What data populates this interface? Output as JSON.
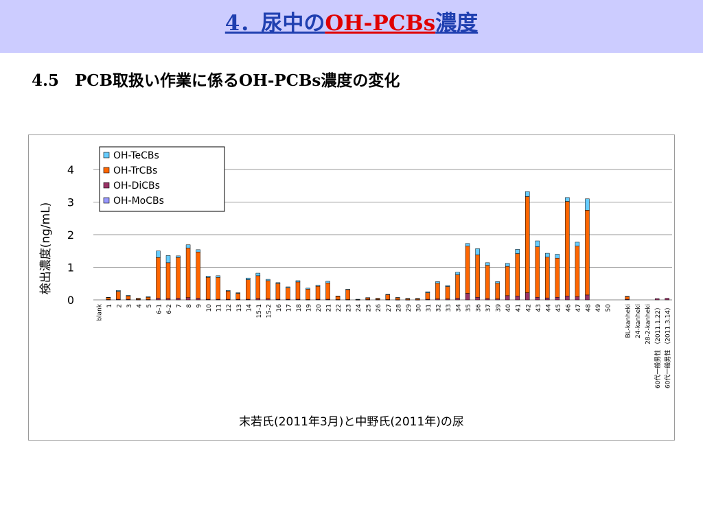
{
  "title": {
    "prefix": "4．尿中の",
    "highlight": "OH-PCBs",
    "suffix": "濃度",
    "color_main": "#1f3fb0",
    "color_highlight": "#e00000"
  },
  "subtitle": "4.5　PCB取扱い作業に係るOH-PCBs濃度の変化",
  "chart_data": {
    "type": "bar",
    "stacked": true,
    "title": "",
    "xlabel": "末若氏(2011年3月)と中野氏(2011年)の尿",
    "ylabel": "検出濃度(ng/mL)",
    "ylim": [
      0,
      4
    ],
    "yticks": [
      "0",
      "1",
      "2",
      "3",
      "4"
    ],
    "grid": true,
    "legend_position": "top-left",
    "categories": [
      "blank",
      "1",
      "2",
      "3",
      "4",
      "5",
      "6-1",
      "6-2",
      "7",
      "8",
      "9",
      "10",
      "11",
      "12",
      "13",
      "14",
      "15-1",
      "15-2",
      "16",
      "17",
      "18",
      "19",
      "20",
      "21",
      "22",
      "23",
      "24",
      "25",
      "26",
      "27",
      "28",
      "29",
      "30",
      "31",
      "32",
      "33",
      "34",
      "35",
      "36",
      "37",
      "39",
      "40",
      "41",
      "42",
      "43",
      "44",
      "45",
      "46",
      "47",
      "48",
      "49",
      "50",
      "",
      "BL-kanheki",
      "24-kanheki",
      "28-2-kanheki",
      "60代一般男性 （2011.1.22）",
      "60代一般男性 （2011.3.14）"
    ],
    "series": [
      {
        "name": "OH-MoCBs",
        "color": "#9999ff",
        "values": [
          0,
          0,
          0,
          0,
          0,
          0,
          0,
          0,
          0,
          0,
          0,
          0,
          0,
          0,
          0,
          0,
          0,
          0,
          0,
          0,
          0,
          0,
          0,
          0,
          0,
          0,
          0,
          0,
          0,
          0,
          0,
          0,
          0,
          0,
          0,
          0,
          0,
          0,
          0,
          0,
          0,
          0,
          0,
          0,
          0,
          0,
          0,
          0,
          0,
          0,
          0,
          0,
          0,
          0,
          0,
          0,
          0,
          0
        ]
      },
      {
        "name": "OH-DiCBs",
        "color": "#993366",
        "values": [
          0,
          0.01,
          0.02,
          0.02,
          0.01,
          0.01,
          0.05,
          0.04,
          0.05,
          0.07,
          0.05,
          0.02,
          0.02,
          0.02,
          0.02,
          0.02,
          0.04,
          0.03,
          0.02,
          0.02,
          0.02,
          0.01,
          0.02,
          0.02,
          0.01,
          0.01,
          0.005,
          0.01,
          0.01,
          0.01,
          0.005,
          0.005,
          0.005,
          0.02,
          0.03,
          0.03,
          0.05,
          0.2,
          0.08,
          0.04,
          0.03,
          0.13,
          0.12,
          0.22,
          0.08,
          0.06,
          0.08,
          0.12,
          0.1,
          0.15,
          0,
          0,
          0,
          0.02,
          0,
          0,
          0.04,
          0.05
        ]
      },
      {
        "name": "OH-TrCBs",
        "color": "#ff6600",
        "values": [
          0,
          0.06,
          0.24,
          0.1,
          0.03,
          0.07,
          1.25,
          1.1,
          1.25,
          1.52,
          1.42,
          0.67,
          0.67,
          0.25,
          0.18,
          0.6,
          0.7,
          0.56,
          0.48,
          0.35,
          0.53,
          0.32,
          0.4,
          0.5,
          0.1,
          0.3,
          0.01,
          0.05,
          0.03,
          0.15,
          0.06,
          0.03,
          0.03,
          0.2,
          0.48,
          0.38,
          0.72,
          1.45,
          1.3,
          1.02,
          0.48,
          0.9,
          1.3,
          2.95,
          1.55,
          1.25,
          1.2,
          2.9,
          1.55,
          2.6,
          0,
          0,
          0,
          0.08,
          0,
          0,
          0,
          0
        ]
      },
      {
        "name": "OH-TeCBs",
        "color": "#66ccff",
        "values": [
          0,
          0.01,
          0.03,
          0.02,
          0.01,
          0.02,
          0.2,
          0.22,
          0.05,
          0.1,
          0.07,
          0.04,
          0.05,
          0.02,
          0.02,
          0.05,
          0.08,
          0.04,
          0.03,
          0.03,
          0.04,
          0.03,
          0.03,
          0.05,
          0.01,
          0.02,
          0.005,
          0.01,
          0.01,
          0.01,
          0.01,
          0.01,
          0.01,
          0.03,
          0.05,
          0.03,
          0.08,
          0.08,
          0.19,
          0.08,
          0.05,
          0.09,
          0.13,
          0.15,
          0.18,
          0.12,
          0.12,
          0.12,
          0.12,
          0.35,
          0,
          0,
          0,
          0.01,
          0,
          0,
          0,
          0
        ]
      }
    ]
  }
}
